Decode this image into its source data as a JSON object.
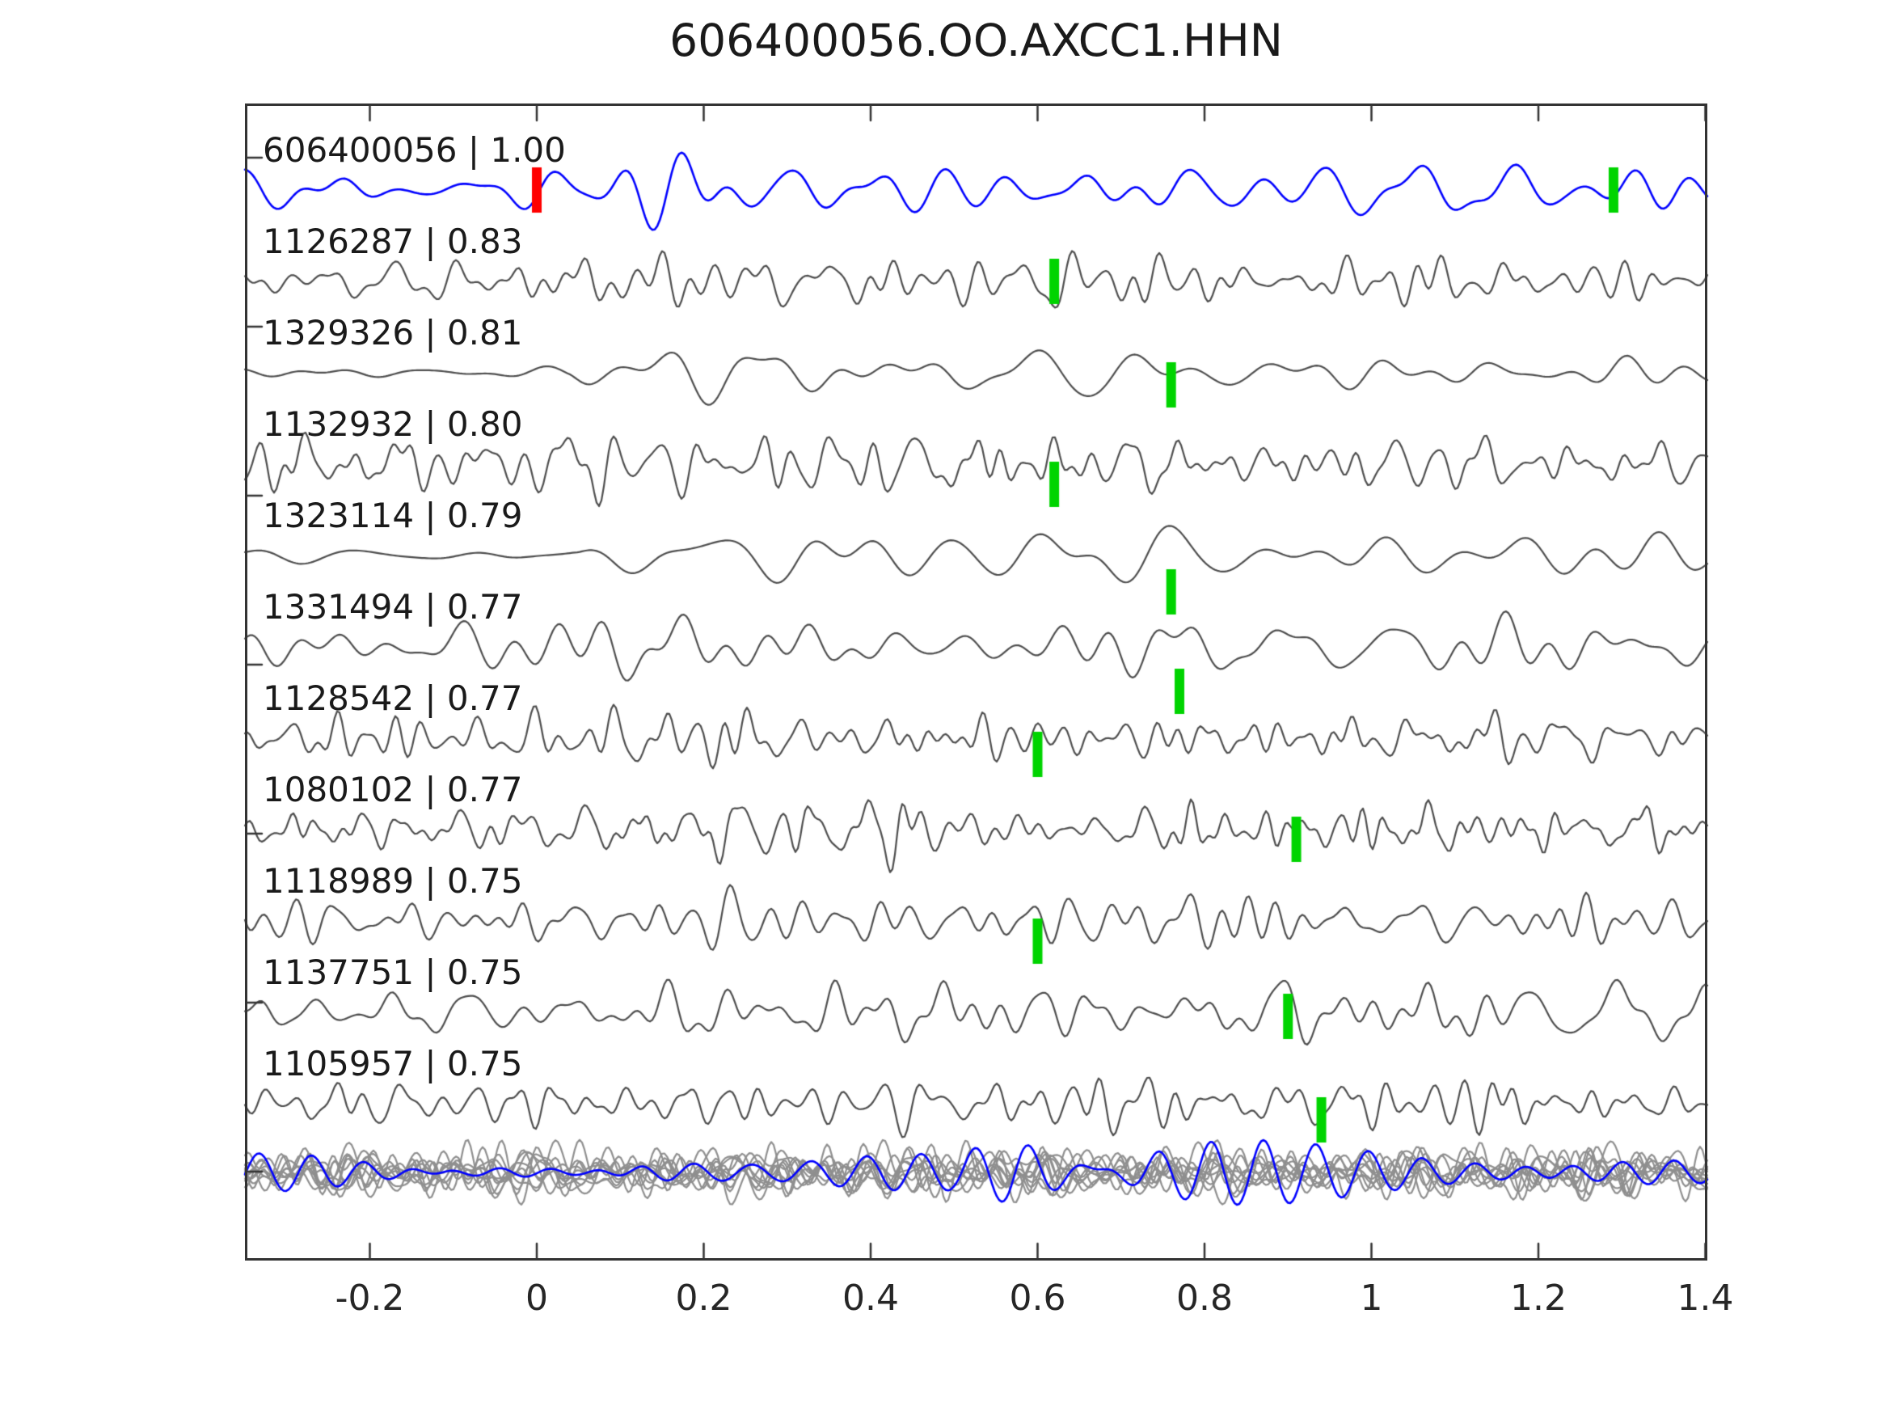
{
  "chart_data": {
    "type": "line",
    "title": "606400056.OO.AXCC1.HHN",
    "xlabel": "",
    "ylabel": "",
    "xlim": [
      -0.35,
      1.4025
    ],
    "x_ticks": [
      -0.2,
      0,
      0.2,
      0.4,
      0.6,
      0.8,
      1,
      1.2,
      1.4
    ],
    "x_tick_labels": [
      "-0.2",
      "0",
      "0.2",
      "0.4",
      "0.6",
      "0.8",
      "1",
      "1.2",
      "1.4"
    ],
    "grid": false,
    "legend": "none",
    "colors": {
      "template_trace": "#0000ff",
      "detection_trace": "#4d4d4d",
      "stack_trace": "#8f8f8f",
      "pick_green": "#00d400",
      "pick_red": "#ff0000",
      "axis": "#333333",
      "text": "#1a1a1a"
    },
    "traces": [
      {
        "id": "606400056",
        "cc": "1.00",
        "label": "606400056 | 1.00",
        "color": "template_trace",
        "picks": [
          {
            "x": 0.0,
            "color": "pick_red",
            "dy": 0
          },
          {
            "x": 1.29,
            "color": "pick_green",
            "dy": 0
          }
        ],
        "seed": 42,
        "f": [
          7,
          20
        ],
        "n": 26,
        "amp": 46,
        "env": [
          [
            -0.35,
            0.55
          ],
          [
            -0.05,
            0.6
          ],
          [
            0.07,
            1.2
          ],
          [
            0.33,
            1.05
          ],
          [
            0.5,
            0.7
          ],
          [
            0.9,
            0.8
          ],
          [
            1.4,
            0.7
          ]
        ]
      },
      {
        "id": "1126287",
        "cc": "0.83",
        "label": "1126287 | 0.83",
        "color": "detection_trace",
        "picks": [
          {
            "x": 0.62,
            "color": "pick_green",
            "dy": 0
          }
        ],
        "seed": 7,
        "f": [
          9,
          42
        ],
        "n": 40,
        "amp": 40,
        "env": [
          [
            -0.35,
            0.75
          ],
          [
            0.1,
            1.05
          ],
          [
            0.5,
            0.95
          ],
          [
            1.4,
            0.9
          ]
        ]
      },
      {
        "id": "1329326",
        "cc": "0.81",
        "label": "1329326 | 0.81",
        "color": "detection_trace",
        "picks": [
          {
            "x": 0.76,
            "color": "pick_green",
            "dy": 15
          }
        ],
        "seed": 13,
        "f": [
          5,
          17
        ],
        "n": 22,
        "amp": 50,
        "env": [
          [
            -0.35,
            0.15
          ],
          [
            0.04,
            0.18
          ],
          [
            0.12,
            1.2
          ],
          [
            0.3,
            0.8
          ],
          [
            0.55,
            0.55
          ],
          [
            0.75,
            0.6
          ],
          [
            1.05,
            0.45
          ],
          [
            1.28,
            1.0
          ],
          [
            1.4,
            0.8
          ]
        ]
      },
      {
        "id": "1132932",
        "cc": "0.80",
        "label": "1132932 | 0.80",
        "color": "detection_trace",
        "picks": [
          {
            "x": 0.62,
            "color": "pick_green",
            "dy": 25
          }
        ],
        "seed": 99,
        "f": [
          9,
          48
        ],
        "n": 44,
        "amp": 46,
        "env": [
          [
            -0.35,
            0.95
          ],
          [
            0.12,
            1.15
          ],
          [
            0.6,
            1.0
          ],
          [
            1.4,
            0.95
          ]
        ]
      },
      {
        "id": "1323114",
        "cc": "0.79",
        "label": "1323114 | 0.79",
        "color": "detection_trace",
        "picks": [
          {
            "x": 0.76,
            "color": "pick_green",
            "dy": 45
          }
        ],
        "seed": 5,
        "f": [
          5,
          15
        ],
        "n": 20,
        "amp": 46,
        "env": [
          [
            -0.35,
            0.22
          ],
          [
            0.05,
            0.25
          ],
          [
            0.14,
            1.2
          ],
          [
            0.35,
            0.9
          ],
          [
            0.75,
            0.8
          ],
          [
            1.1,
            0.7
          ],
          [
            1.4,
            0.75
          ]
        ]
      },
      {
        "id": "1331494",
        "cc": "0.77",
        "label": "1331494 | 0.77",
        "color": "detection_trace",
        "picks": [
          {
            "x": 0.77,
            "color": "pick_green",
            "dy": 55
          }
        ],
        "seed": 31,
        "f": [
          6,
          22
        ],
        "n": 26,
        "amp": 48,
        "env": [
          [
            -0.35,
            0.7
          ],
          [
            0.1,
            1.15
          ],
          [
            0.45,
            0.95
          ],
          [
            0.8,
            1.0
          ],
          [
            1.4,
            0.85
          ]
        ]
      },
      {
        "id": "1128542",
        "cc": "0.77",
        "label": "1128542 | 0.77",
        "color": "detection_trace",
        "picks": [
          {
            "x": 0.6,
            "color": "pick_green",
            "dy": 20
          }
        ],
        "seed": 77,
        "f": [
          11,
          50
        ],
        "n": 46,
        "amp": 42,
        "env": [
          [
            -0.35,
            0.9
          ],
          [
            0.2,
            1.0
          ],
          [
            1.4,
            0.95
          ]
        ]
      },
      {
        "id": "1080102",
        "cc": "0.77",
        "label": "1080102 | 0.77",
        "color": "detection_trace",
        "picks": [
          {
            "x": 0.91,
            "color": "pick_green",
            "dy": 12
          }
        ],
        "seed": 123,
        "f": [
          11,
          55
        ],
        "n": 48,
        "amp": 48,
        "env": [
          [
            -0.35,
            0.85
          ],
          [
            0.2,
            1.05
          ],
          [
            1.4,
            1.0
          ]
        ]
      },
      {
        "id": "1118989",
        "cc": "0.75",
        "label": "1118989 | 0.75",
        "color": "detection_trace",
        "picks": [
          {
            "x": 0.6,
            "color": "pick_green",
            "dy": 25
          }
        ],
        "seed": 55,
        "f": [
          9,
          40
        ],
        "n": 40,
        "amp": 44,
        "env": [
          [
            -0.35,
            0.85
          ],
          [
            0.3,
            1.0
          ],
          [
            1.4,
            0.9
          ]
        ]
      },
      {
        "id": "1137751",
        "cc": "0.75",
        "label": "1137751 | 0.75",
        "color": "detection_trace",
        "picks": [
          {
            "x": 0.9,
            "color": "pick_green",
            "dy": 5
          }
        ],
        "seed": 211,
        "f": [
          7,
          32
        ],
        "n": 34,
        "amp": 48,
        "env": [
          [
            -0.35,
            0.55
          ],
          [
            0.1,
            0.8
          ],
          [
            0.45,
            1.1
          ],
          [
            1.4,
            1.0
          ]
        ]
      },
      {
        "id": "1105957",
        "cc": "0.75",
        "label": "1105957 | 0.75",
        "color": "detection_trace",
        "picks": [
          {
            "x": 0.94,
            "color": "pick_green",
            "dy": 20
          }
        ],
        "seed": 171,
        "f": [
          9,
          45
        ],
        "n": 42,
        "amp": 42,
        "env": [
          [
            -0.35,
            0.8
          ],
          [
            0.2,
            1.0
          ],
          [
            1.4,
            0.95
          ]
        ]
      }
    ],
    "overlay_stack": {
      "description": "all detection traces overplotted at bottom with template",
      "gray_trace_count": 10,
      "gray": {
        "seed_base": 301,
        "seed_step": 13,
        "f": [
          9,
          42
        ],
        "n": 40,
        "amp": 44,
        "env": [
          [
            -0.35,
            0.9
          ],
          [
            1.4,
            0.9
          ]
        ]
      },
      "blue": {
        "seed": 500,
        "f": [
          13.5,
          18.5
        ],
        "n": 12,
        "amp": 52,
        "env": [
          [
            -0.35,
            0.45
          ],
          [
            0.05,
            0.45
          ],
          [
            0.13,
            1.05
          ],
          [
            0.27,
            0.55
          ],
          [
            0.5,
            0.5
          ],
          [
            0.58,
            1.25
          ],
          [
            0.75,
            1.3
          ],
          [
            1.05,
            1.1
          ],
          [
            1.25,
            1.15
          ],
          [
            1.4,
            0.95
          ]
        ]
      }
    }
  }
}
